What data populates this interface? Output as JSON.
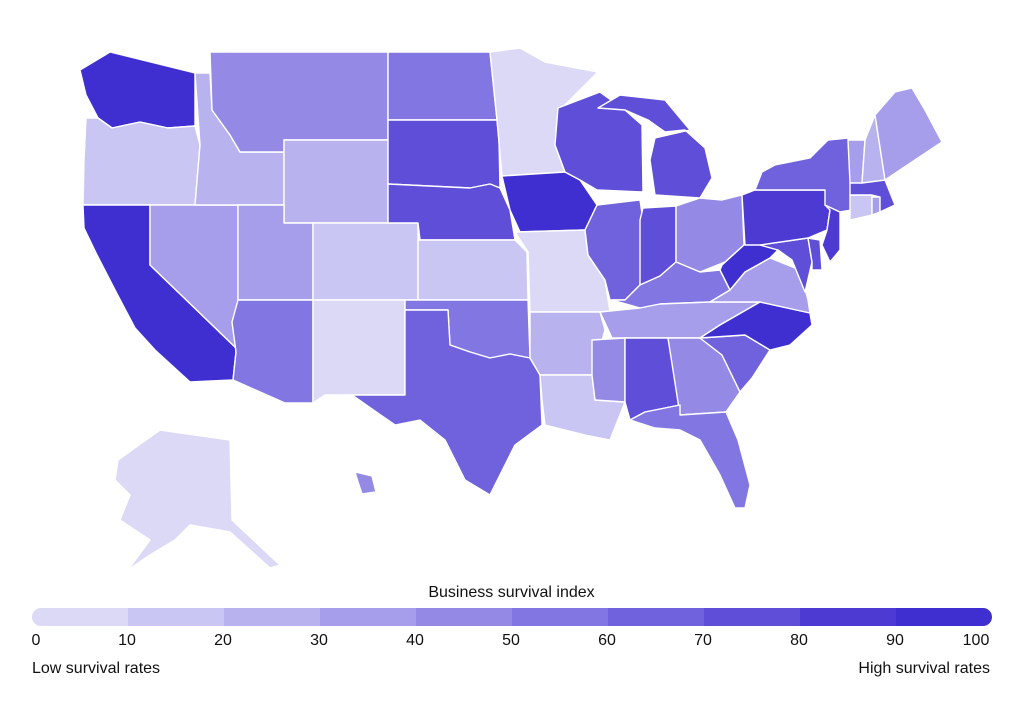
{
  "legend": {
    "title": "Business survival index",
    "ticks": [
      "0",
      "10",
      "20",
      "30",
      "40",
      "50",
      "60",
      "70",
      "80",
      "90",
      "100"
    ],
    "low_label": "Low survival rates",
    "high_label": "High survival rates",
    "colors": [
      "#dcd9f6",
      "#cac6f3",
      "#b8b2ef",
      "#a69eeb",
      "#948ae6",
      "#8276e2",
      "#7062dd",
      "#5e4ed8",
      "#4c3ad3",
      "#3f2fd0"
    ]
  },
  "states": {
    "WA": {
      "bin": 9
    },
    "OR": {
      "bin": 1
    },
    "CA": {
      "bin": 9
    },
    "NV": {
      "bin": 3
    },
    "ID": {
      "bin": 2
    },
    "MT": {
      "bin": 4
    },
    "WY": {
      "bin": 2
    },
    "UT": {
      "bin": 3
    },
    "AZ": {
      "bin": 5
    },
    "CO": {
      "bin": 1
    },
    "NM": {
      "bin": 0
    },
    "ND": {
      "bin": 5
    },
    "SD": {
      "bin": 7
    },
    "NE": {
      "bin": 7
    },
    "KS": {
      "bin": 1
    },
    "OK": {
      "bin": 5
    },
    "TX": {
      "bin": 6
    },
    "MN": {
      "bin": 0
    },
    "IA": {
      "bin": 9
    },
    "MO": {
      "bin": 0
    },
    "AR": {
      "bin": 2
    },
    "LA": {
      "bin": 1
    },
    "WI": {
      "bin": 7
    },
    "IL": {
      "bin": 6
    },
    "MI": {
      "bin": 7
    },
    "IN": {
      "bin": 7
    },
    "OH": {
      "bin": 4
    },
    "KY": {
      "bin": 5
    },
    "TN": {
      "bin": 3
    },
    "MS": {
      "bin": 4
    },
    "AL": {
      "bin": 7
    },
    "GA": {
      "bin": 4
    },
    "FL": {
      "bin": 5
    },
    "SC": {
      "bin": 6
    },
    "NC": {
      "bin": 9
    },
    "VA": {
      "bin": 3
    },
    "WV": {
      "bin": 9
    },
    "MD": {
      "bin": 7
    },
    "DE": {
      "bin": 7
    },
    "PA": {
      "bin": 8
    },
    "NJ": {
      "bin": 8
    },
    "NY": {
      "bin": 6
    },
    "CT": {
      "bin": 1
    },
    "RI": {
      "bin": 3
    },
    "MA": {
      "bin": 7
    },
    "VT": {
      "bin": 3
    },
    "NH": {
      "bin": 2
    },
    "ME": {
      "bin": 3
    },
    "AK": {
      "bin": 0
    },
    "HI": {
      "bin": 4
    }
  }
}
